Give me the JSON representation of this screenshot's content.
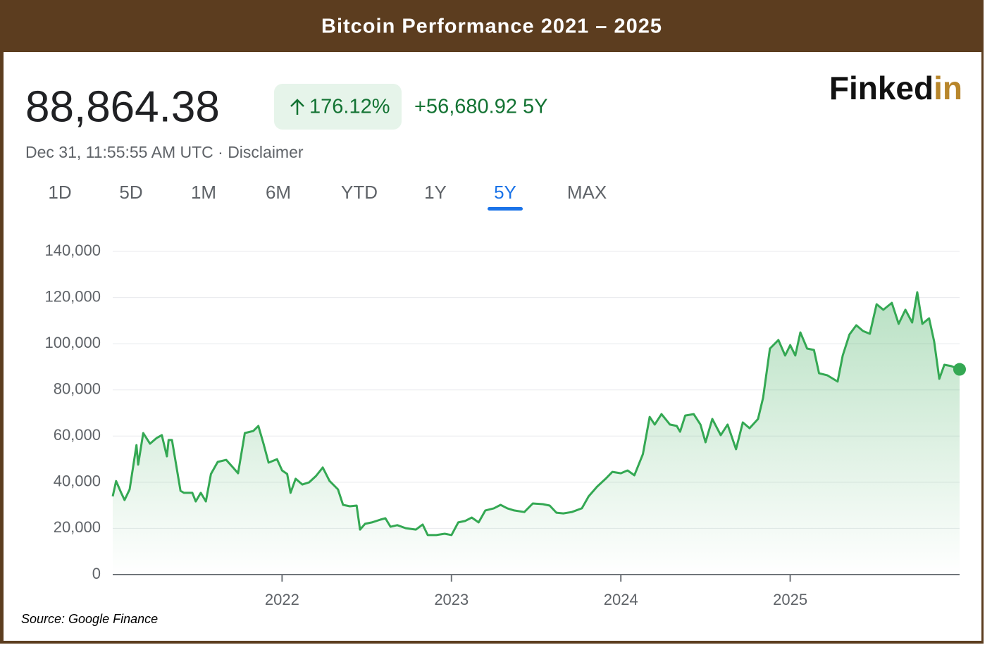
{
  "title": "Bitcoin Performance 2021 – 2025",
  "header": {
    "price": "88,864.38",
    "change_percent": "176.12%",
    "change_value": "+56,680.92 5Y",
    "timestamp": "Dec 31, 11:55:55 AM UTC · Disclaimer"
  },
  "logo": {
    "main": "Finked",
    "accent": "in"
  },
  "tabs": [
    "1D",
    "5D",
    "1M",
    "6M",
    "YTD",
    "1Y",
    "5Y",
    "MAX"
  ],
  "selected_tab": "5Y",
  "source": "Source: Google Finance",
  "chart_data": {
    "type": "line",
    "fill": true,
    "color": "#34a853",
    "grid": true,
    "xlim": [
      2021,
      2026
    ],
    "xticks": [
      2022,
      2023,
      2024,
      2025
    ],
    "ylim": [
      0,
      140000
    ],
    "yticks": [
      0,
      {
        "value": 20000,
        "label": "20,000"
      },
      {
        "value": 40000,
        "label": "40,000"
      },
      {
        "value": 60000,
        "label": "60,000"
      },
      {
        "value": 80000,
        "label": "80,000"
      },
      {
        "value": 100000,
        "label": "100,000"
      },
      {
        "value": 120000,
        "label": "120,000"
      },
      {
        "value": 140000,
        "label": "140,000"
      }
    ],
    "x": [
      2021.0,
      2021.02,
      2021.05,
      2021.07,
      2021.1,
      2021.14,
      2021.15,
      2021.18,
      2021.22,
      2021.26,
      2021.29,
      2021.32,
      2021.33,
      2021.35,
      2021.4,
      2021.42,
      2021.47,
      2021.49,
      2021.52,
      2021.55,
      2021.58,
      2021.62,
      2021.67,
      2021.71,
      2021.74,
      2021.78,
      2021.83,
      2021.86,
      2021.89,
      2021.92,
      2021.97,
      2022.0,
      2022.03,
      2022.05,
      2022.08,
      2022.12,
      2022.16,
      2022.2,
      2022.24,
      2022.28,
      2022.33,
      2022.36,
      2022.4,
      2022.44,
      2022.46,
      2022.49,
      2022.53,
      2022.58,
      2022.61,
      2022.64,
      2022.68,
      2022.73,
      2022.79,
      2022.83,
      2022.86,
      2022.91,
      2022.96,
      2023.0,
      2023.04,
      2023.08,
      2023.12,
      2023.16,
      2023.2,
      2023.25,
      2023.29,
      2023.33,
      2023.37,
      2023.43,
      2023.48,
      2023.54,
      2023.58,
      2023.62,
      2023.66,
      2023.71,
      2023.77,
      2023.81,
      2023.86,
      2023.91,
      2023.95,
      2024.0,
      2024.04,
      2024.08,
      2024.13,
      2024.17,
      2024.2,
      2024.24,
      2024.29,
      2024.33,
      2024.35,
      2024.38,
      2024.43,
      2024.47,
      2024.5,
      2024.54,
      2024.59,
      2024.63,
      2024.68,
      2024.72,
      2024.76,
      2024.81,
      2024.84,
      2024.88,
      2024.93,
      2024.97,
      2025.0,
      2025.03,
      2025.06,
      2025.1,
      2025.14,
      2025.17,
      2025.22,
      2025.28,
      2025.31,
      2025.35,
      2025.39,
      2025.43,
      2025.47,
      2025.51,
      2025.55,
      2025.6,
      2025.64,
      2025.68,
      2025.72,
      2025.75,
      2025.78,
      2025.82,
      2025.85,
      2025.88,
      2025.91,
      2025.95,
      2026.0
    ],
    "values": [
      33900,
      40500,
      35400,
      32300,
      36900,
      56100,
      47600,
      61300,
      56700,
      59200,
      60400,
      51200,
      58300,
      58300,
      36300,
      35400,
      35400,
      31700,
      35400,
      31700,
      43600,
      48800,
      49700,
      46400,
      43900,
      61300,
      62200,
      64400,
      56700,
      48500,
      50000,
      45100,
      43600,
      35400,
      41500,
      39000,
      40000,
      42700,
      46400,
      40600,
      36900,
      30200,
      29600,
      29900,
      19500,
      22000,
      22600,
      23800,
      24400,
      20700,
      21400,
      20100,
      19500,
      21700,
      17100,
      17100,
      17700,
      17100,
      22600,
      23200,
      24700,
      22600,
      27800,
      28700,
      30200,
      28700,
      27800,
      27100,
      30800,
      30500,
      29900,
      26800,
      26500,
      27100,
      28700,
      33900,
      38100,
      41500,
      44500,
      43900,
      45100,
      43000,
      52200,
      68300,
      65000,
      69500,
      65000,
      64400,
      61900,
      68900,
      69500,
      65000,
      57300,
      67400,
      60400,
      65000,
      54300,
      65900,
      63400,
      67400,
      76600,
      97900,
      101600,
      94900,
      99400,
      94900,
      104900,
      97900,
      97300,
      87200,
      86300,
      83600,
      94900,
      104000,
      108000,
      105500,
      104300,
      117100,
      114700,
      117700,
      108600,
      114700,
      109200,
      122300,
      108600,
      111000,
      101000,
      84800,
      90900,
      90300,
      88900
    ]
  }
}
